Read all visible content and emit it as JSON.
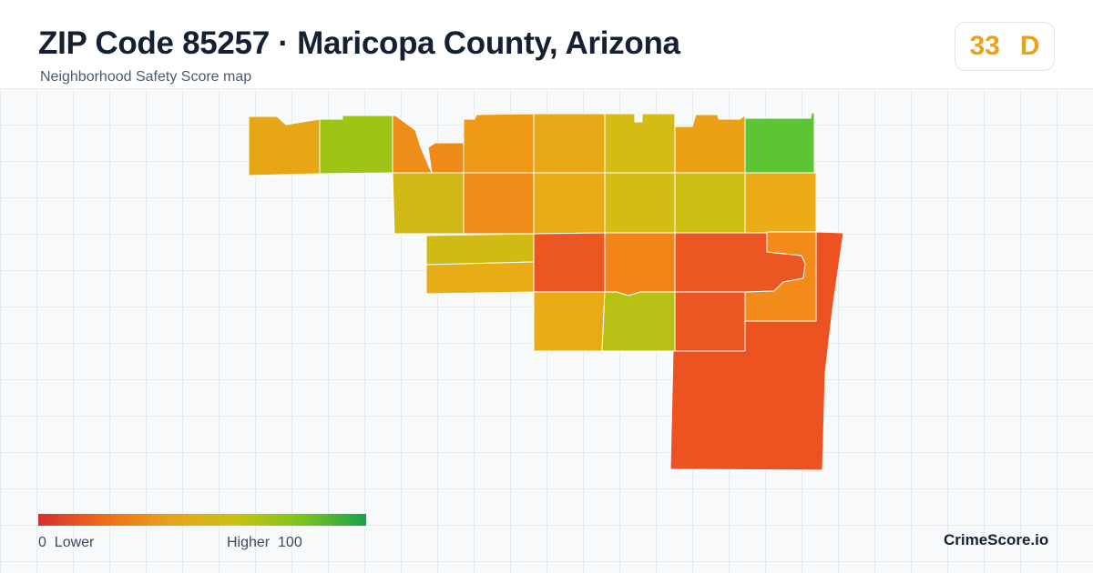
{
  "header": {
    "title": "ZIP Code 85257 · Maricopa County, Arizona",
    "subtitle": "Neighborhood Safety Score map"
  },
  "score": {
    "value": "33",
    "grade": "D",
    "color": "#e8a21c"
  },
  "legend": {
    "min_value": "0",
    "min_label": "Lower",
    "max_label": "Higher",
    "max_value": "100",
    "colors": [
      "#d32f2f",
      "#ef6c1a",
      "#e8a21c",
      "#c9c214",
      "#7ec41f",
      "#16a34a"
    ]
  },
  "brand": "CrimeScore.io",
  "map": {
    "regions": [
      {
        "id": "r1",
        "color": "#e6a615"
      },
      {
        "id": "r2",
        "color": "#9ec415"
      },
      {
        "id": "r3",
        "color": "#ee8d1a"
      },
      {
        "id": "r4",
        "color": "#f08a19"
      },
      {
        "id": "r5",
        "color": "#ee9a17"
      },
      {
        "id": "r6",
        "color": "#e8a916"
      },
      {
        "id": "r7",
        "color": "#d4bc14"
      },
      {
        "id": "r8",
        "color": "#eba115"
      },
      {
        "id": "r9",
        "color": "#5cc534"
      },
      {
        "id": "r10",
        "color": "#d0b815"
      },
      {
        "id": "r11",
        "color": "#ef8c1a"
      },
      {
        "id": "r12",
        "color": "#e8ac16"
      },
      {
        "id": "r13",
        "color": "#d4bc14"
      },
      {
        "id": "r14",
        "color": "#cdbd14"
      },
      {
        "id": "r15",
        "color": "#ebac16"
      },
      {
        "id": "r16",
        "color": "#d0bb14"
      },
      {
        "id": "r17",
        "color": "#e8ac16"
      },
      {
        "id": "r18",
        "color": "#ec5623"
      },
      {
        "id": "r19",
        "color": "#f28418"
      },
      {
        "id": "r20",
        "color": "#ec5623"
      },
      {
        "id": "r21",
        "color": "#f28b19"
      },
      {
        "id": "r22",
        "color": "#ec5320"
      },
      {
        "id": "r23",
        "color": "#e8ab16"
      },
      {
        "id": "r24",
        "color": "#b7c115"
      },
      {
        "id": "r25",
        "color": "#ec5623"
      },
      {
        "id": "r26",
        "color": "#e84c21"
      }
    ]
  }
}
